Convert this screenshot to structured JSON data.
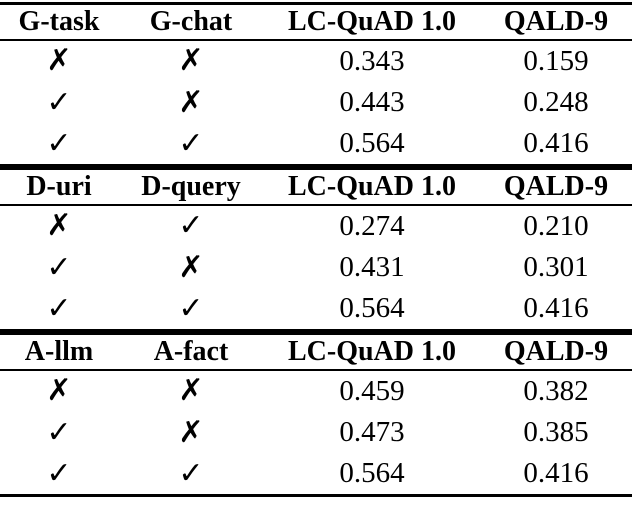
{
  "page": {
    "background": "#ffffff",
    "text_color": "#000000"
  },
  "icons": {
    "check": "✓",
    "cross": "✗"
  },
  "table": {
    "sections": [
      {
        "headers": [
          "G-task",
          "G-chat",
          "LC-QuAD 1.0",
          "QALD-9"
        ],
        "rows": [
          {
            "marks": [
              "✗",
              "✗"
            ],
            "values": [
              "0.343",
              "0.159"
            ]
          },
          {
            "marks": [
              "✓",
              "✗"
            ],
            "values": [
              "0.443",
              "0.248"
            ]
          },
          {
            "marks": [
              "✓",
              "✓"
            ],
            "values": [
              "0.564",
              "0.416"
            ]
          }
        ]
      },
      {
        "headers": [
          "D-uri",
          "D-query",
          "LC-QuAD 1.0",
          "QALD-9"
        ],
        "rows": [
          {
            "marks": [
              "✗",
              "✓"
            ],
            "values": [
              "0.274",
              "0.210"
            ]
          },
          {
            "marks": [
              "✓",
              "✗"
            ],
            "values": [
              "0.431",
              "0.301"
            ]
          },
          {
            "marks": [
              "✓",
              "✓"
            ],
            "values": [
              "0.564",
              "0.416"
            ]
          }
        ]
      },
      {
        "headers": [
          "A-llm",
          "A-fact",
          "LC-QuAD 1.0",
          "QALD-9"
        ],
        "rows": [
          {
            "marks": [
              "✗",
              "✗"
            ],
            "values": [
              "0.459",
              "0.382"
            ]
          },
          {
            "marks": [
              "✓",
              "✗"
            ],
            "values": [
              "0.473",
              "0.385"
            ]
          },
          {
            "marks": [
              "✓",
              "✓"
            ],
            "values": [
              "0.564",
              "0.416"
            ]
          }
        ]
      }
    ]
  }
}
